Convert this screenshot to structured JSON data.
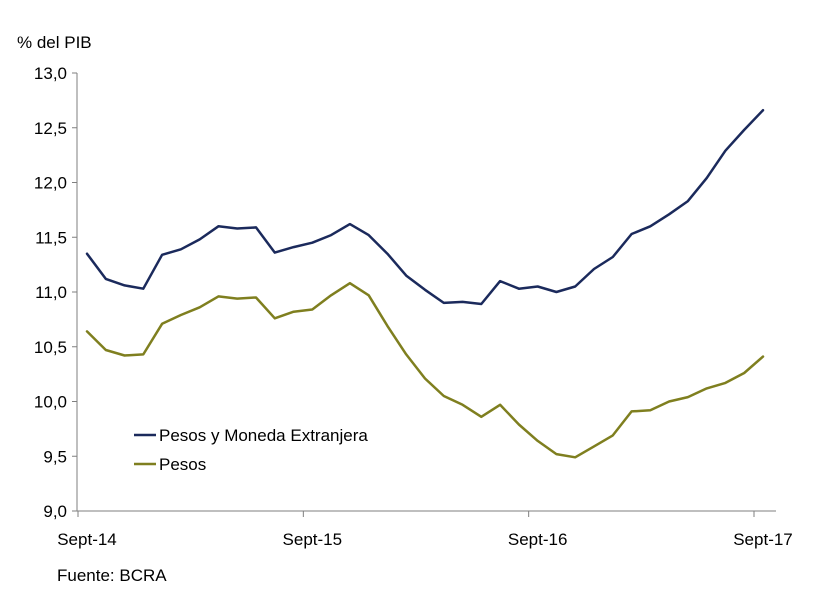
{
  "chart_data": {
    "type": "line",
    "ylabel": "% del PIB",
    "ylim": [
      9.0,
      13.0
    ],
    "yticks": [
      "9,0",
      "9,5",
      "10,0",
      "10,5",
      "11,0",
      "11,5",
      "12,0",
      "12,5",
      "13,0"
    ],
    "xtick_labels": [
      "Sept-14",
      "Sept-15",
      "Sept-16",
      "Sept-17"
    ],
    "x": [
      "Sep-14",
      "Oct-14",
      "Nov-14",
      "Dec-14",
      "Jan-15",
      "Feb-15",
      "Mar-15",
      "Apr-15",
      "May-15",
      "Jun-15",
      "Jul-15",
      "Aug-15",
      "Sep-15",
      "Oct-15",
      "Nov-15",
      "Dec-15",
      "Jan-16",
      "Feb-16",
      "Mar-16",
      "Apr-16",
      "May-16",
      "Jun-16",
      "Jul-16",
      "Aug-16",
      "Sep-16",
      "Oct-16",
      "Nov-16",
      "Dec-16",
      "Jan-17",
      "Feb-17",
      "Mar-17",
      "Apr-17",
      "May-17",
      "Jun-17",
      "Jul-17",
      "Aug-17",
      "Sep-17"
    ],
    "series": [
      {
        "name": "Pesos y Moneda Extranjera",
        "color": "#1b2a5c",
        "values": [
          11.35,
          11.12,
          11.06,
          11.03,
          11.34,
          11.39,
          11.48,
          11.6,
          11.58,
          11.59,
          11.36,
          11.41,
          11.45,
          11.52,
          11.62,
          11.52,
          11.35,
          11.15,
          11.02,
          10.9,
          10.91,
          10.89,
          11.1,
          11.03,
          11.05,
          11.0,
          11.05,
          11.21,
          11.32,
          11.53,
          11.6,
          11.71,
          11.83,
          12.04,
          12.29,
          12.48,
          12.66
        ]
      },
      {
        "name": "Pesos",
        "color": "#7f7f1f",
        "values": [
          10.64,
          10.47,
          10.42,
          10.43,
          10.71,
          10.79,
          10.86,
          10.96,
          10.94,
          10.95,
          10.76,
          10.82,
          10.84,
          10.97,
          11.08,
          10.97,
          10.69,
          10.43,
          10.21,
          10.05,
          9.97,
          9.86,
          9.97,
          9.79,
          9.64,
          9.52,
          9.49,
          9.59,
          9.69,
          9.91,
          9.92,
          10.0,
          10.04,
          10.12,
          10.17,
          10.26,
          10.41
        ]
      }
    ],
    "legend_position": "center-left",
    "grid": false
  },
  "source": "Fuente: BCRA"
}
